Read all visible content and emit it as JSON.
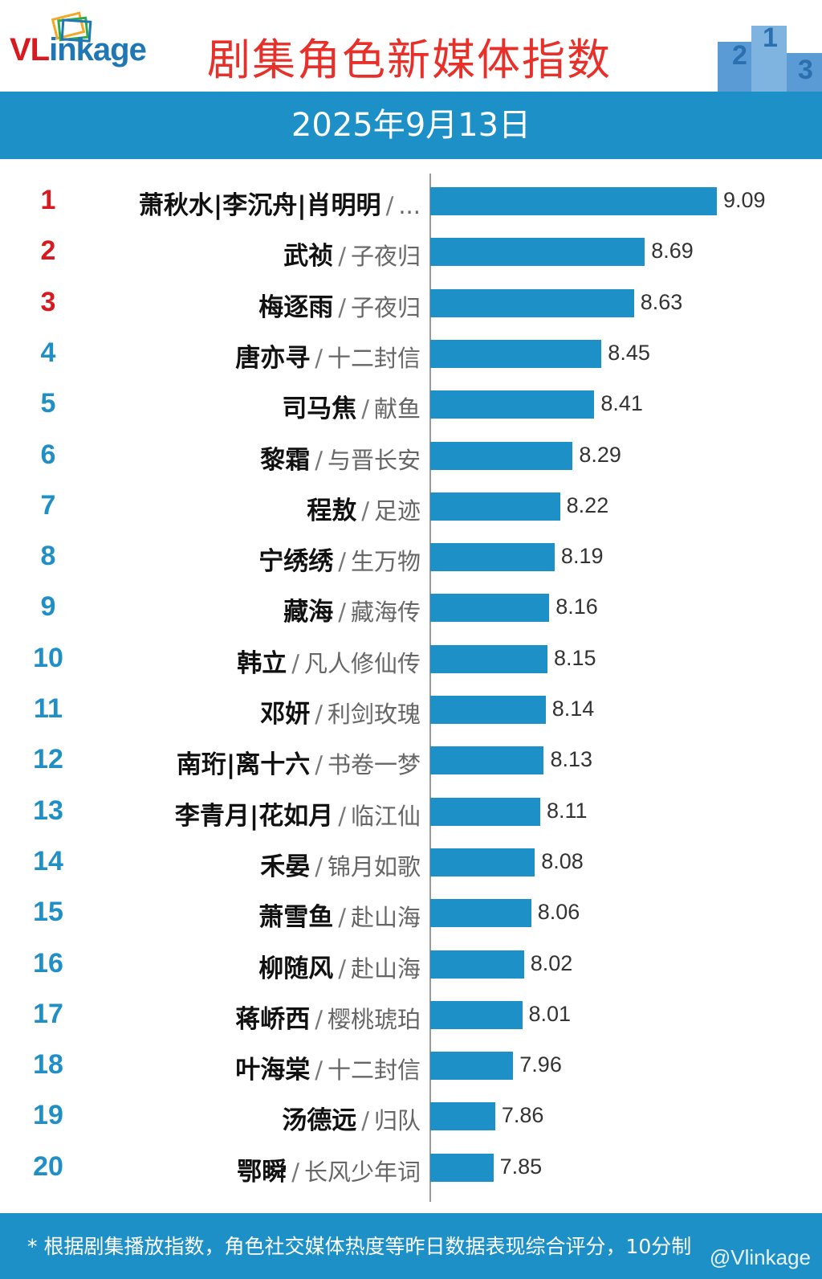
{
  "header": {
    "logo_text": "VLinkage",
    "title": "剧集角色新媒体指数",
    "date": "2025年9月13日"
  },
  "colors": {
    "bar": "#1e90c8",
    "rank_top": "#d71920",
    "rank_rest": "#1f8fc6",
    "title": "#e8302b"
  },
  "chart_data": {
    "type": "bar",
    "orientation": "horizontal",
    "xlim": [
      7.5,
      9.3
    ],
    "categories": [
      {
        "rank": "1",
        "name": "萧秋水|李沉舟|肖明明",
        "show": "..."
      },
      {
        "rank": "2",
        "name": "武祯",
        "show": "子夜归"
      },
      {
        "rank": "3",
        "name": "梅逐雨",
        "show": "子夜归"
      },
      {
        "rank": "4",
        "name": "唐亦寻",
        "show": "十二封信"
      },
      {
        "rank": "5",
        "name": "司马焦",
        "show": "献鱼"
      },
      {
        "rank": "6",
        "name": "黎霜",
        "show": "与晋长安"
      },
      {
        "rank": "7",
        "name": "程敖",
        "show": "足迹"
      },
      {
        "rank": "8",
        "name": "宁绣绣",
        "show": "生万物"
      },
      {
        "rank": "9",
        "name": "藏海",
        "show": "藏海传"
      },
      {
        "rank": "10",
        "name": "韩立",
        "show": "凡人修仙传"
      },
      {
        "rank": "11",
        "name": "邓妍",
        "show": "利剑玫瑰"
      },
      {
        "rank": "12",
        "name": "南珩|离十六",
        "show": "书卷一梦"
      },
      {
        "rank": "13",
        "name": "李青月|花如月",
        "show": "临江仙"
      },
      {
        "rank": "14",
        "name": "禾晏",
        "show": "锦月如歌"
      },
      {
        "rank": "15",
        "name": "萧雪鱼",
        "show": "赴山海"
      },
      {
        "rank": "16",
        "name": "柳随风",
        "show": "赴山海"
      },
      {
        "rank": "17",
        "name": "蒋峤西",
        "show": "樱桃琥珀"
      },
      {
        "rank": "18",
        "name": "叶海棠",
        "show": "十二封信"
      },
      {
        "rank": "19",
        "name": "汤德远",
        "show": "归队"
      },
      {
        "rank": "20",
        "name": "鄂瞬",
        "show": "长风少年词"
      }
    ],
    "values": [
      9.09,
      8.69,
      8.63,
      8.45,
      8.41,
      8.29,
      8.22,
      8.19,
      8.16,
      8.15,
      8.14,
      8.13,
      8.11,
      8.08,
      8.06,
      8.02,
      8.01,
      7.96,
      7.86,
      7.85
    ],
    "value_labels": [
      "9.09",
      "8.69",
      "8.63",
      "8.45",
      "8.41",
      "8.29",
      "8.22",
      "8.19",
      "8.16",
      "8.15",
      "8.14",
      "8.13",
      "8.11",
      "8.08",
      "8.06",
      "8.02",
      "8.01",
      "7.96",
      "7.86",
      "7.85"
    ]
  },
  "footer": {
    "note": "* 根据剧集播放指数，角色社交媒体热度等昨日数据表现综合评分，10分制",
    "watermark": "@Vlinkage"
  }
}
